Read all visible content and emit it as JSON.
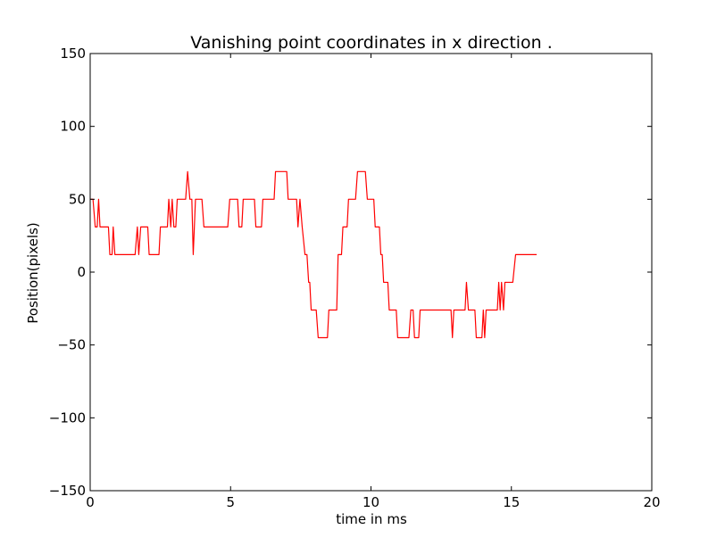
{
  "chart_data": {
    "type": "line",
    "title": "Vanishing point coordinates in x direction .",
    "xlabel": "time in ms",
    "ylabel": "Position(pixels)",
    "xlim": [
      0,
      20
    ],
    "ylim": [
      -150,
      150
    ],
    "xticks": [
      0,
      5,
      10,
      15,
      20
    ],
    "yticks": [
      -150,
      -100,
      -50,
      0,
      50,
      100,
      150
    ],
    "grid": false,
    "series": [
      {
        "color": "#ff0000",
        "points": [
          [
            0.0,
            50
          ],
          [
            0.1,
            50
          ],
          [
            0.18,
            31
          ],
          [
            0.25,
            31
          ],
          [
            0.3,
            50
          ],
          [
            0.35,
            31
          ],
          [
            0.65,
            31
          ],
          [
            0.7,
            12
          ],
          [
            0.78,
            12
          ],
          [
            0.82,
            31
          ],
          [
            0.88,
            12
          ],
          [
            1.6,
            12
          ],
          [
            1.68,
            31
          ],
          [
            1.73,
            12
          ],
          [
            1.8,
            31
          ],
          [
            2.05,
            31
          ],
          [
            2.1,
            12
          ],
          [
            2.45,
            12
          ],
          [
            2.5,
            31
          ],
          [
            2.75,
            31
          ],
          [
            2.8,
            50
          ],
          [
            2.87,
            31
          ],
          [
            2.92,
            50
          ],
          [
            2.98,
            31
          ],
          [
            3.05,
            31
          ],
          [
            3.1,
            50
          ],
          [
            3.4,
            50
          ],
          [
            3.47,
            69
          ],
          [
            3.55,
            50
          ],
          [
            3.62,
            50
          ],
          [
            3.67,
            12
          ],
          [
            3.75,
            50
          ],
          [
            3.98,
            50
          ],
          [
            4.05,
            31
          ],
          [
            4.9,
            31
          ],
          [
            4.97,
            50
          ],
          [
            5.25,
            50
          ],
          [
            5.3,
            31
          ],
          [
            5.4,
            31
          ],
          [
            5.45,
            50
          ],
          [
            5.85,
            50
          ],
          [
            5.9,
            31
          ],
          [
            6.1,
            31
          ],
          [
            6.15,
            50
          ],
          [
            6.55,
            50
          ],
          [
            6.6,
            69
          ],
          [
            7.0,
            69
          ],
          [
            7.05,
            50
          ],
          [
            7.35,
            50
          ],
          [
            7.4,
            31
          ],
          [
            7.47,
            50
          ],
          [
            7.55,
            31
          ],
          [
            7.65,
            12
          ],
          [
            7.72,
            12
          ],
          [
            7.78,
            -7
          ],
          [
            7.82,
            -7
          ],
          [
            7.87,
            -26
          ],
          [
            8.05,
            -26
          ],
          [
            8.12,
            -45
          ],
          [
            8.45,
            -45
          ],
          [
            8.5,
            -26
          ],
          [
            8.78,
            -26
          ],
          [
            8.83,
            12
          ],
          [
            8.95,
            12
          ],
          [
            9.0,
            31
          ],
          [
            9.15,
            31
          ],
          [
            9.2,
            50
          ],
          [
            9.45,
            50
          ],
          [
            9.52,
            69
          ],
          [
            9.8,
            69
          ],
          [
            9.87,
            50
          ],
          [
            10.1,
            50
          ],
          [
            10.15,
            31
          ],
          [
            10.3,
            31
          ],
          [
            10.35,
            12
          ],
          [
            10.4,
            12
          ],
          [
            10.45,
            -7
          ],
          [
            10.6,
            -7
          ],
          [
            10.65,
            -26
          ],
          [
            10.9,
            -26
          ],
          [
            10.95,
            -45
          ],
          [
            11.35,
            -45
          ],
          [
            11.42,
            -26
          ],
          [
            11.5,
            -26
          ],
          [
            11.55,
            -45
          ],
          [
            11.7,
            -45
          ],
          [
            11.75,
            -26
          ],
          [
            12.85,
            -26
          ],
          [
            12.9,
            -45
          ],
          [
            12.95,
            -26
          ],
          [
            13.35,
            -26
          ],
          [
            13.4,
            -7
          ],
          [
            13.47,
            -26
          ],
          [
            13.7,
            -26
          ],
          [
            13.75,
            -45
          ],
          [
            13.95,
            -45
          ],
          [
            14.0,
            -26
          ],
          [
            14.05,
            -45
          ],
          [
            14.1,
            -26
          ],
          [
            14.5,
            -26
          ],
          [
            14.55,
            -7
          ],
          [
            14.6,
            -26
          ],
          [
            14.65,
            -7
          ],
          [
            14.72,
            -26
          ],
          [
            14.77,
            -7
          ],
          [
            15.05,
            -7
          ],
          [
            15.15,
            12
          ],
          [
            15.9,
            12
          ]
        ]
      }
    ]
  }
}
